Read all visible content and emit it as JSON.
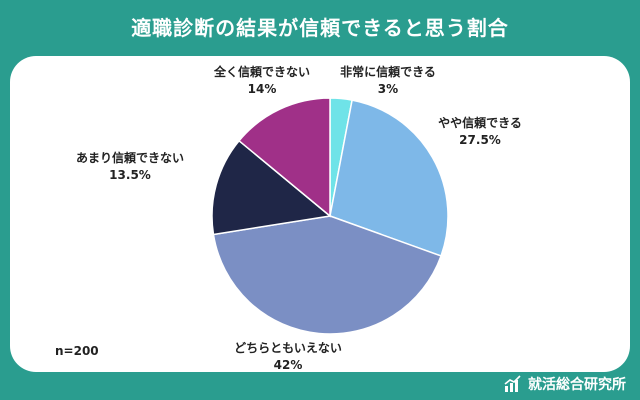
{
  "title": "適職診断の結果が信頼できると思う割合",
  "sample_size": "n=200",
  "brand": "就活総合研究所",
  "chart_data": {
    "type": "pie",
    "title": "適職診断の結果が信頼できると思う割合",
    "slices": [
      {
        "label": "非常に信頼できる",
        "value": 3,
        "display": "3%",
        "color": "#6fe3e8"
      },
      {
        "label": "やや信頼できる",
        "value": 27.5,
        "display": "27.5%",
        "color": "#7eb8e8"
      },
      {
        "label": "どちらともいえない",
        "value": 42,
        "display": "42%",
        "color": "#7b8fc4"
      },
      {
        "label": "あまり信頼できない",
        "value": 13.5,
        "display": "13.5%",
        "color": "#1f2647"
      },
      {
        "label": "全く信頼できない",
        "value": 14,
        "display": "14%",
        "color": "#a03088"
      }
    ],
    "start_angle": "12 o'clock",
    "direction": "clockwise"
  }
}
